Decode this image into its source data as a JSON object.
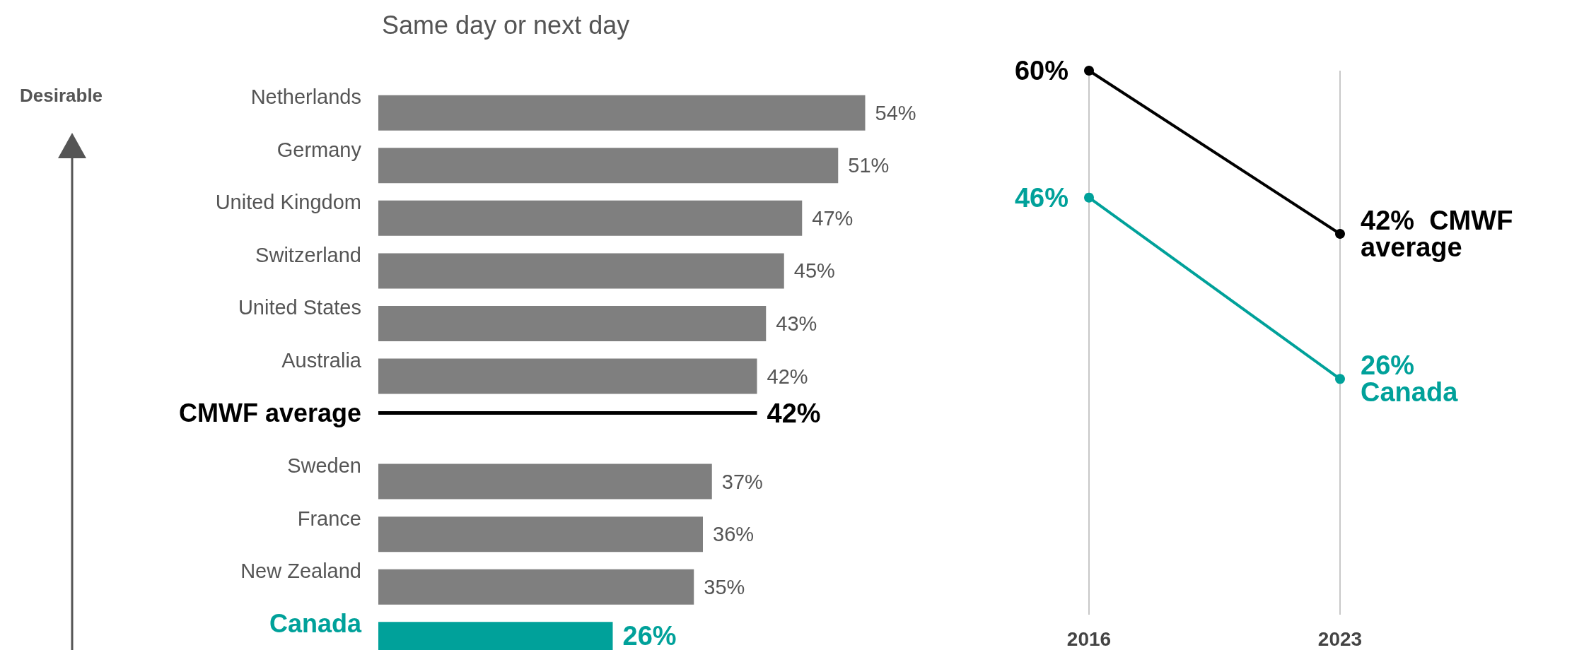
{
  "chart_data": [
    {
      "type": "bar",
      "orientation": "horizontal",
      "title": "Same day or next day",
      "annotations": [
        "Desirable"
      ],
      "legend": false,
      "categories": [
        "Netherlands",
        "Germany",
        "United Kingdom",
        "Switzerland",
        "United States",
        "Australia",
        "CMWF average",
        "Sweden",
        "France",
        "New Zealand",
        "Canada"
      ],
      "series": [
        {
          "type": "bar",
          "values": [
            54,
            51,
            47,
            45,
            43,
            42,
            null,
            37,
            36,
            35,
            26
          ],
          "colors": [
            "#7f7f7f",
            "#7f7f7f",
            "#7f7f7f",
            "#7f7f7f",
            "#7f7f7f",
            "#7f7f7f",
            "#7f7f7f",
            "#7f7f7f",
            "#7f7f7f",
            "#7f7f7f",
            "#00a19a"
          ],
          "value_labels": [
            "54%",
            "51%",
            "47%",
            "45%",
            "43%",
            "42%",
            null,
            "37%",
            "36%",
            "35%",
            "26%"
          ]
        },
        {
          "type": "bar",
          "color": "#000000",
          "values": [
            null,
            null,
            null,
            null,
            null,
            null,
            42,
            null,
            null,
            null,
            null
          ],
          "value_labels": [
            null,
            null,
            null,
            null,
            null,
            null,
            "42%",
            null,
            null,
            null,
            null
          ]
        }
      ]
    },
    {
      "type": "line",
      "categories": [
        "2016",
        "2023"
      ],
      "grid": "x",
      "marker": "circle",
      "legend": false,
      "series": [
        {
          "name": "CMWF average",
          "color": "#000000",
          "values": [
            60,
            42
          ],
          "value_labels": [
            "60%",
            "42%"
          ]
        },
        {
          "name": "Canada",
          "color": "#00a19a",
          "values": [
            46,
            26
          ],
          "value_labels": [
            "46%",
            "26%"
          ]
        }
      ]
    }
  ]
}
